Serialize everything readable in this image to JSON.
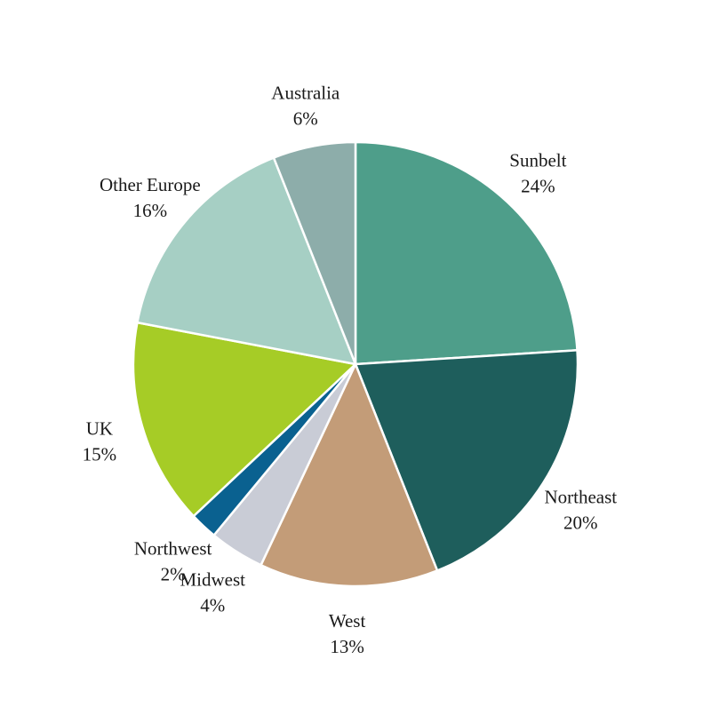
{
  "chart_data": {
    "type": "pie",
    "categories": [
      "Sunbelt",
      "Northeast",
      "West",
      "Midwest",
      "Northwest",
      "UK",
      "Other Europe",
      "Australia"
    ],
    "values": [
      24,
      20,
      13,
      4,
      2,
      15,
      16,
      6
    ],
    "value_labels": [
      "24%",
      "20%",
      "13%",
      "4%",
      "2%",
      "15%",
      "16%",
      "6%"
    ],
    "colors": [
      "#4e9e8a",
      "#1e5e5c",
      "#c39c78",
      "#c9ccd6",
      "#0a6190",
      "#a6cc26",
      "#a6cfc4",
      "#8dadaa"
    ]
  }
}
